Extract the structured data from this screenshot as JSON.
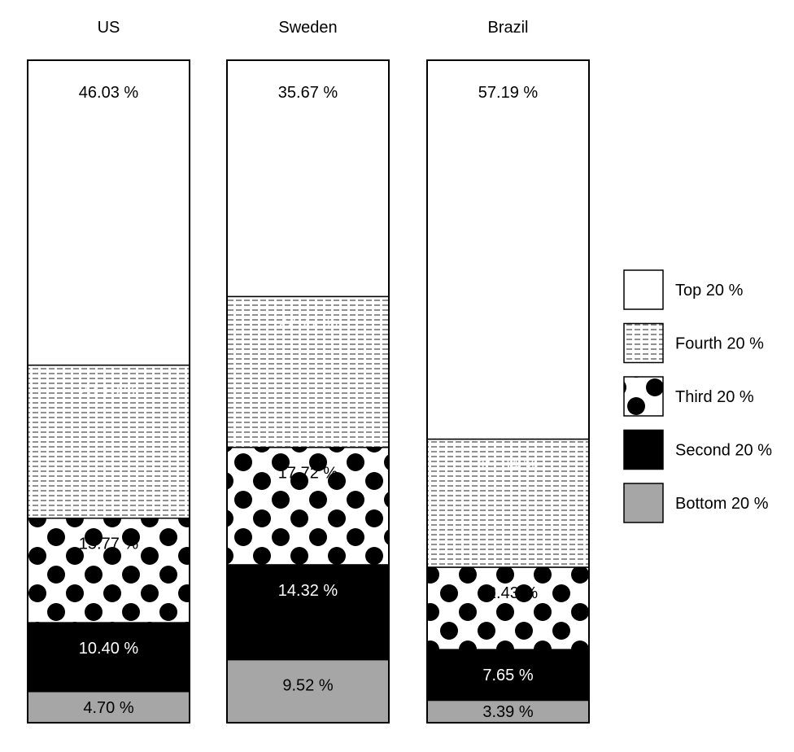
{
  "chart_data": {
    "type": "bar",
    "stacked": true,
    "normalized": true,
    "unit": "%",
    "categories": [
      "US",
      "Sweden",
      "Brazil"
    ],
    "series": [
      {
        "name": "Bottom 20 %",
        "pattern": "solid-gray",
        "color": "#a6a6a6",
        "label_color": "#000000",
        "values": [
          4.7,
          9.52,
          3.39
        ],
        "labels": [
          "4.70 %",
          "9.52 %",
          "3.39 %"
        ]
      },
      {
        "name": "Second 20 %",
        "pattern": "solid-black",
        "color": "#000000",
        "label_color": "#ffffff",
        "values": [
          10.4,
          14.32,
          7.65
        ],
        "labels": [
          "10.40 %",
          "14.32 %",
          "7.65 %"
        ]
      },
      {
        "name": "Third 20 %",
        "pattern": "dots",
        "color": "#000000",
        "label_color": "#000000",
        "values": [
          15.77,
          17.72,
          12.43
        ],
        "labels": [
          "15.77 %",
          "17.72 %",
          "12.43 %"
        ]
      },
      {
        "name": "Fourth 20 %",
        "pattern": "dashes",
        "color": "#000000",
        "label_color": "#ffffff",
        "values": [
          23.1,
          22.77,
          19.34
        ],
        "labels": [
          "23.10 %",
          "22.77 %",
          "19.34 %"
        ]
      },
      {
        "name": "Top 20 %",
        "pattern": "white",
        "color": "#ffffff",
        "label_color": "#000000",
        "values": [
          46.03,
          35.67,
          57.19
        ],
        "labels": [
          "46.03 %",
          "35.67 %",
          "57.19 %"
        ]
      }
    ],
    "legend_order": [
      "Top 20 %",
      "Fourth 20 %",
      "Third 20 %",
      "Second 20 %",
      "Bottom 20 %"
    ],
    "legend_position": "right",
    "grid": false,
    "axes_visible": false
  }
}
